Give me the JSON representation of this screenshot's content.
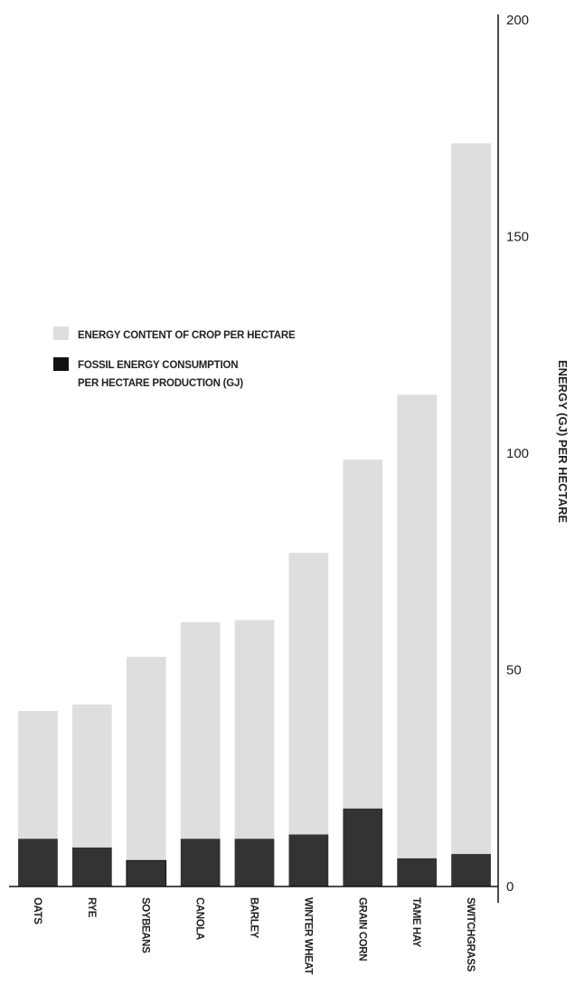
{
  "chart_data": {
    "type": "bar",
    "stacked": false,
    "overlay": true,
    "categories": [
      "OATS",
      "RYE",
      "SOYBEANS",
      "CANOLA",
      "BARLEY",
      "WINTER WHEAT",
      "GRAIN CORN",
      "TAME HAY",
      "SWITCHGRASS"
    ],
    "series": [
      {
        "name": "ENERGY CONTENT OF CROP PER HECTARE",
        "color": "#dedede",
        "values": [
          40.5,
          42,
          53,
          61,
          61.5,
          77,
          98.5,
          113.5,
          171.5
        ]
      },
      {
        "name": "FOSSIL ENERGY CONSUMPTION PER HECTARE PRODUCTION (GJ)",
        "color": "#333333",
        "values": [
          11,
          9,
          6,
          11,
          11,
          12,
          18,
          6.5,
          7.5
        ]
      }
    ],
    "legend": {
      "placement": "middle-left",
      "entries": [
        {
          "lines": [
            "ENERGY CONTENT OF CROP PER HECTARE"
          ],
          "color": "#dedede"
        },
        {
          "lines": [
            "FOSSIL ENERGY CONSUMPTION",
            "PER HECTARE PRODUCTION (GJ)"
          ],
          "color": "#111111"
        }
      ]
    },
    "ylabel": "ENERGY (GJ) PER HECTARE",
    "xlabel": "",
    "title": "",
    "ylim": [
      0,
      200
    ],
    "yticks": [
      "0",
      "50",
      "100",
      "150",
      "200"
    ],
    "ytick_values": [
      0,
      50,
      100,
      150,
      200
    ],
    "y_axis_side": "right",
    "grid": false
  }
}
